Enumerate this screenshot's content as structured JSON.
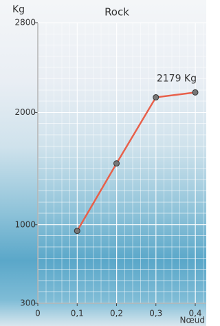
{
  "chart_data": {
    "type": "line",
    "title": "Rock",
    "y_label": "Kg",
    "x_label": "Nœud",
    "x": [
      0.1,
      0.2,
      0.3,
      0.4
    ],
    "series": [
      {
        "name": "Rock",
        "color": "#e8604a",
        "values": [
          945,
          1546,
          2135,
          2179
        ],
        "value_labels": [
          null,
          null,
          null,
          "2179 Kg"
        ]
      }
    ],
    "xlim": [
      0,
      0.4
    ],
    "xticks": [
      0,
      {
        "value": 0.1,
        "label": "0,1"
      },
      {
        "value": 0.2,
        "label": "0,2"
      },
      {
        "value": 0.3,
        "label": "0,3"
      },
      {
        "value": 0.4,
        "label": "0,4"
      }
    ],
    "ylim": [
      300,
      2800
    ],
    "yticks": [
      300,
      1000,
      2000,
      2800
    ],
    "grid": true
  }
}
